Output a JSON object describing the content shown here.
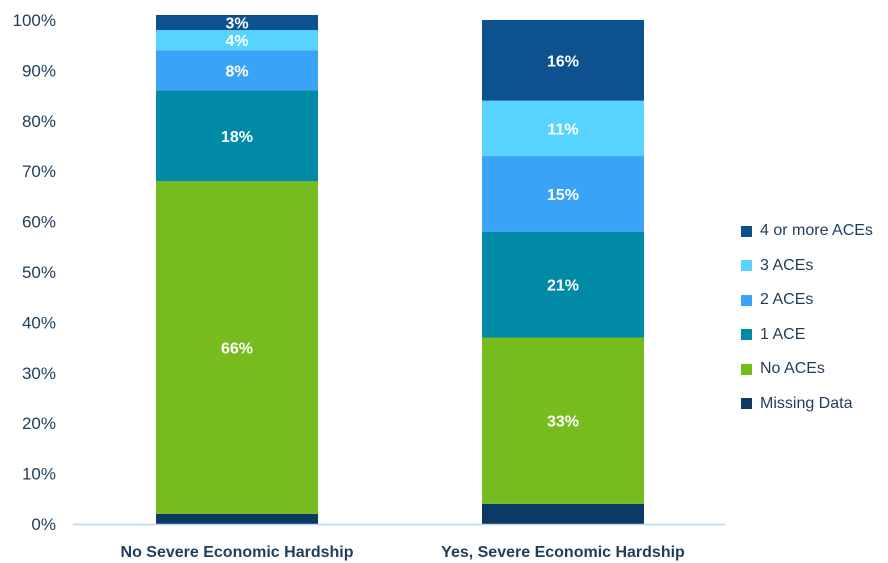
{
  "chart_data": {
    "type": "bar",
    "stacked": true,
    "categories": [
      "No Severe Economic Hardship",
      "Yes, Severe Economic Hardship"
    ],
    "ylim": [
      0,
      100
    ],
    "y_ticks": [
      "0%",
      "10%",
      "20%",
      "30%",
      "40%",
      "50%",
      "60%",
      "70%",
      "80%",
      "90%",
      "100%"
    ],
    "series": [
      {
        "name": "Missing Data",
        "color": "#0b3a64",
        "values": [
          2,
          4
        ],
        "labels": [
          "",
          ""
        ]
      },
      {
        "name": "No ACEs",
        "color": "#77bc1f",
        "values": [
          66,
          33
        ],
        "labels": [
          "66%",
          "33%"
        ]
      },
      {
        "name": "1 ACE",
        "color": "#008aa6",
        "values": [
          18,
          21
        ],
        "labels": [
          "18%",
          "21%"
        ]
      },
      {
        "name": "2 ACEs",
        "color": "#3aa3f5",
        "values": [
          8,
          15
        ],
        "labels": [
          "8%",
          "15%"
        ]
      },
      {
        "name": "3 ACEs",
        "color": "#57d3ff",
        "values": [
          4,
          11
        ],
        "labels": [
          "4%",
          "11%"
        ]
      },
      {
        "name": "4 or more ACEs",
        "color": "#0d528f",
        "values": [
          3,
          16
        ],
        "labels": [
          "3%",
          "16%"
        ]
      }
    ],
    "legend_position": "right",
    "grid": false
  }
}
